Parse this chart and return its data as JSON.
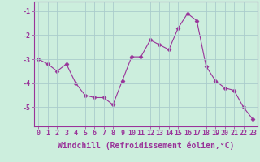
{
  "x": [
    0,
    1,
    2,
    3,
    4,
    5,
    6,
    7,
    8,
    9,
    10,
    11,
    12,
    13,
    14,
    15,
    16,
    17,
    18,
    19,
    20,
    21,
    22,
    23
  ],
  "y": [
    -3.0,
    -3.2,
    -3.5,
    -3.2,
    -4.0,
    -4.5,
    -4.6,
    -4.6,
    -4.9,
    -3.9,
    -2.9,
    -2.9,
    -2.2,
    -2.4,
    -2.6,
    -1.7,
    -1.1,
    -1.4,
    -3.3,
    -3.9,
    -4.2,
    -4.3,
    -5.0,
    -5.5
  ],
  "line_color": "#993399",
  "marker": "D",
  "marker_size": 2.5,
  "bg_color": "#cceedd",
  "grid_color": "#aacccc",
  "xlabel": "Windchill (Refroidissement éolien,°C)",
  "ylim": [
    -5.8,
    -0.6
  ],
  "xlim": [
    -0.5,
    23.5
  ],
  "yticks": [
    -5,
    -4,
    -3,
    -2,
    -1
  ],
  "xticks": [
    0,
    1,
    2,
    3,
    4,
    5,
    6,
    7,
    8,
    9,
    10,
    11,
    12,
    13,
    14,
    15,
    16,
    17,
    18,
    19,
    20,
    21,
    22,
    23
  ],
  "tick_label_fontsize": 6.0,
  "xlabel_fontsize": 7.0
}
